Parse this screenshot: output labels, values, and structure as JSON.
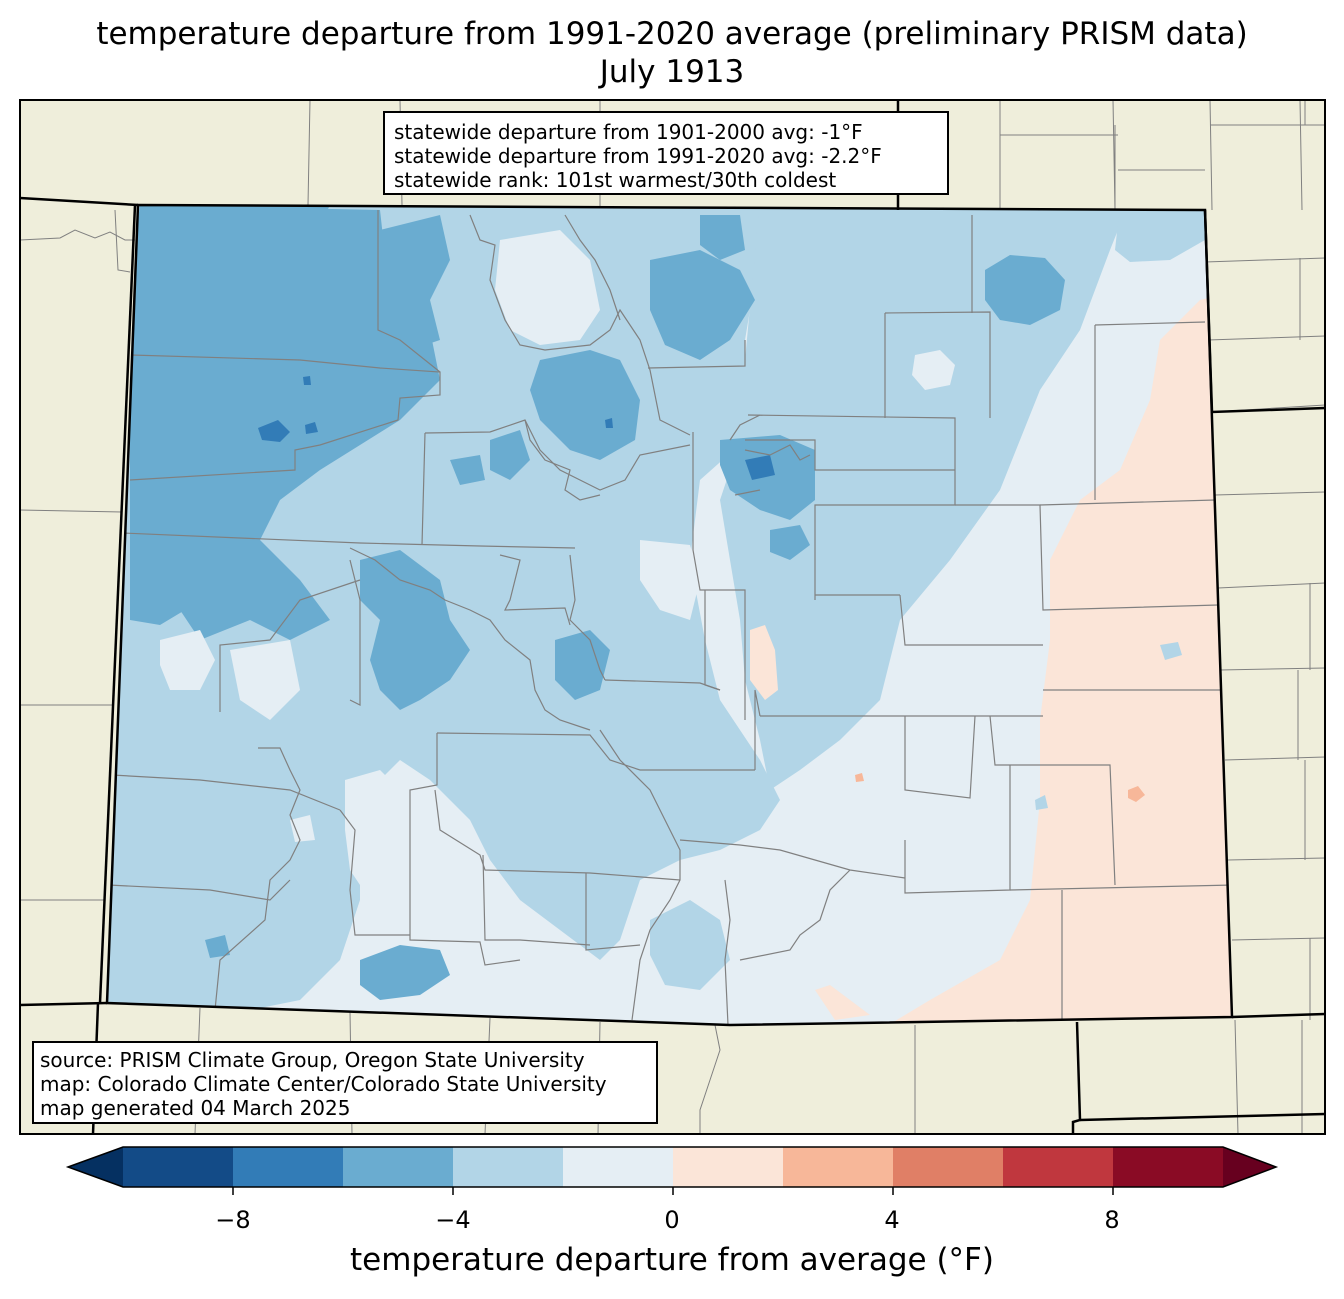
{
  "title": {
    "line1": "temperature departure from 1991-2020 average (preliminary PRISM data)",
    "line2": "July 1913"
  },
  "stats_box": {
    "line1": "statewide departure from 1901-2000 avg: -1°F",
    "line2": "statewide departure from 1991-2020 avg: -2.2°F",
    "line3": "statewide rank: 101st warmest/30th coldest"
  },
  "source_box": {
    "line1": "source: PRISM Climate Group, Oregon State University",
    "line2": "map: Colorado Climate Center/Colorado State University",
    "line3": "map generated 04 March 2025"
  },
  "colorbar": {
    "label": "temperature departure from average (°F)",
    "ticks": [
      "−8",
      "−4",
      "0",
      "4",
      "8"
    ],
    "bins": [
      {
        "range": "below -10",
        "color": "#053061"
      },
      {
        "range": "-10 to -8",
        "color": "#134b87"
      },
      {
        "range": "-8 to -6",
        "color": "#327cb7"
      },
      {
        "range": "-6 to -4",
        "color": "#6aacd0"
      },
      {
        "range": "-4 to -2",
        "color": "#b2d5e7"
      },
      {
        "range": "-2 to 0",
        "color": "#e5eef4"
      },
      {
        "range": "0 to 2",
        "color": "#fbe5d8"
      },
      {
        "range": "2 to 4",
        "color": "#f7b799"
      },
      {
        "range": "4 to 6",
        "color": "#e07f66"
      },
      {
        "range": "6 to 8",
        "color": "#c0373e"
      },
      {
        "range": "8 to 10",
        "color": "#8a0b25"
      },
      {
        "range": "above 10",
        "color": "#67001f"
      }
    ]
  },
  "map_colors": {
    "land_background": "#efeedb",
    "state_border": "#000000",
    "county_border": "#808080"
  }
}
